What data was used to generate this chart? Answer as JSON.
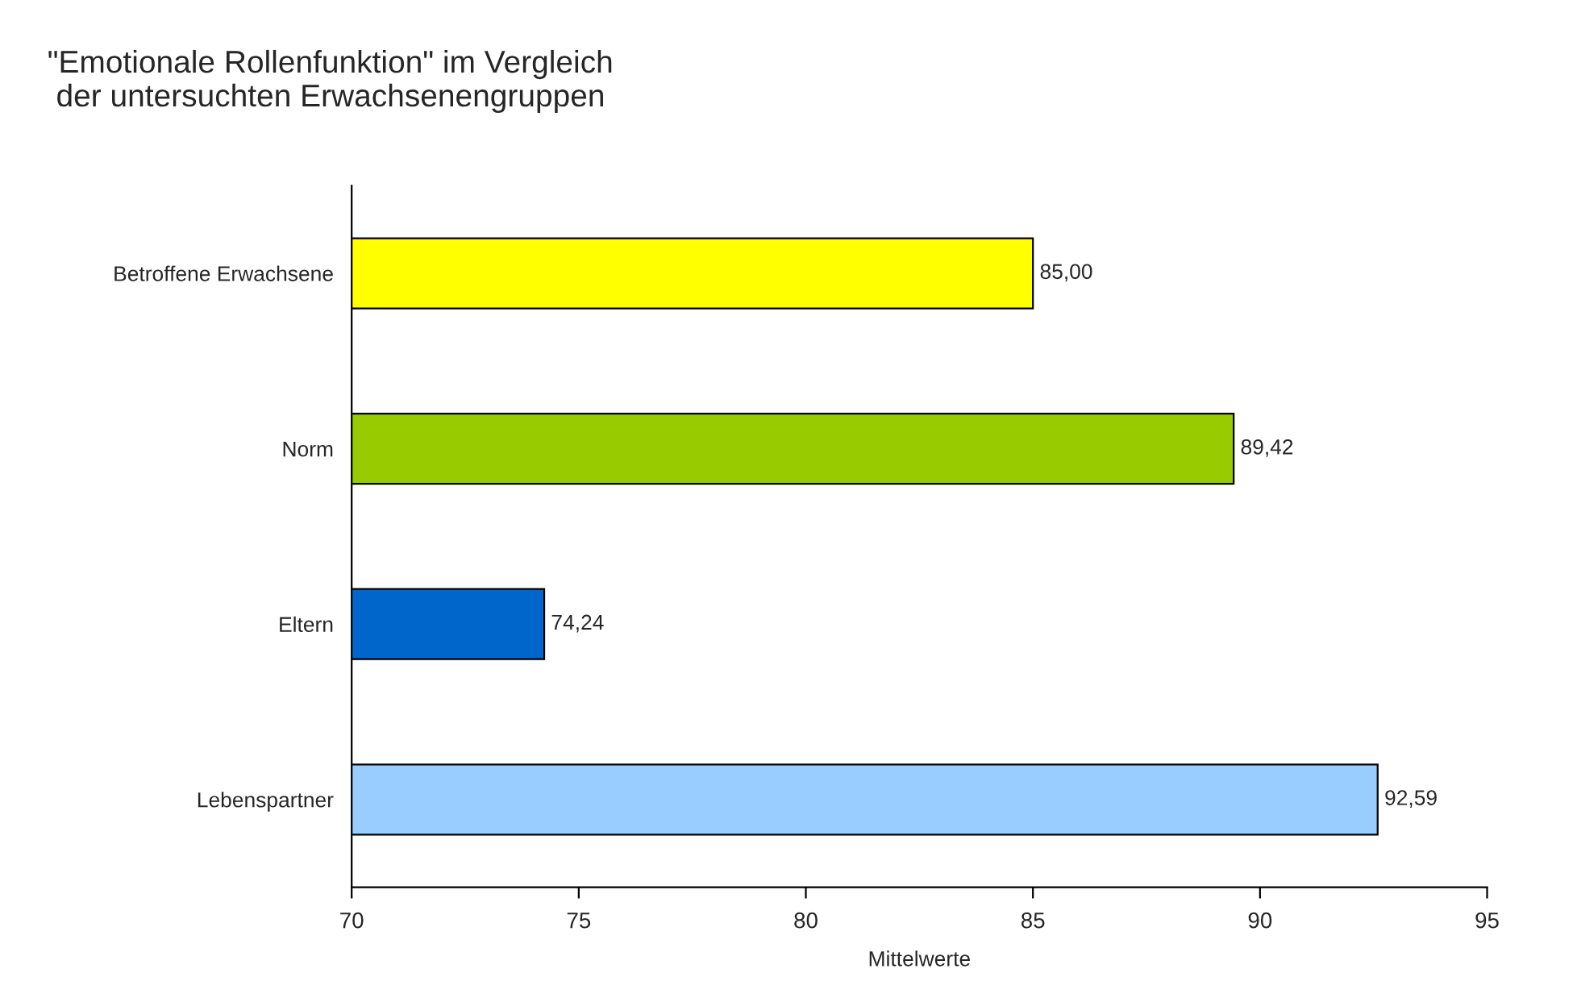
{
  "chart_data": {
    "type": "bar",
    "orientation": "horizontal",
    "title": "\"Emotionale Rollenfunktion\" im Vergleich\n der untersuchten Erwachsenengruppen",
    "xlabel": "Mittelwerte",
    "categories": [
      "Betroffene Erwachsene",
      "Norm",
      "Eltern",
      "Lebenspartner"
    ],
    "values": [
      85.0,
      89.42,
      74.24,
      92.59
    ],
    "colors": [
      "#ffff00",
      "#99cc00",
      "#0066cc",
      "#99ccff"
    ],
    "value_labels": [
      "85,00",
      "89,42",
      "74,24",
      "92,59"
    ],
    "xlim": [
      70,
      95
    ],
    "xticks": [
      70,
      75,
      80,
      85,
      90,
      95
    ],
    "grid": false,
    "legend": false
  }
}
